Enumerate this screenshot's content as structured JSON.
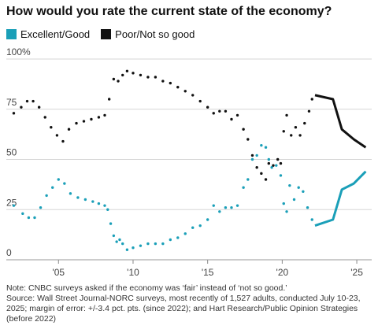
{
  "title": "How would you rate the current state of the economy?",
  "legend": [
    {
      "label": "Excellent/Good",
      "color": "#1a9fb8"
    },
    {
      "label": "Poor/Not so good",
      "color": "#111111"
    }
  ],
  "notes": {
    "note": "Note: CNBC surveys asked if the economy was ‘fair’ instead of ‘not so good.’",
    "source": "Source: Wall Street Journal-NORC surveys, most recently of 1,527 adults, conducted July 10-23, 2025; margin of error: +/-3.4 pct. pts. (since 2022); and Hart Research/Public Opinion Strategies (before 2022)"
  },
  "chart_data": {
    "type": "line",
    "xlim": [
      2001.5,
      2026
    ],
    "ylim": [
      0,
      100
    ],
    "y_ticks": [
      {
        "value": 0,
        "label": "0"
      },
      {
        "value": 25,
        "label": "25"
      },
      {
        "value": 50,
        "label": "50"
      },
      {
        "value": 75,
        "label": "75"
      },
      {
        "value": 100,
        "label": "100%"
      }
    ],
    "x_ticks": [
      {
        "value": 2005,
        "label": "'05"
      },
      {
        "value": 2010,
        "label": "'10"
      },
      {
        "value": 2015,
        "label": "'15"
      },
      {
        "value": 2020,
        "label": "'20"
      },
      {
        "value": 2025,
        "label": "'25"
      }
    ],
    "grid": true,
    "series": [
      {
        "name": "Excellent/Good",
        "color": "#1a9fb8",
        "dotted": [
          [
            2002.0,
            27
          ],
          [
            2002.6,
            23
          ],
          [
            2003.0,
            21
          ],
          [
            2003.4,
            21
          ],
          [
            2003.8,
            26
          ],
          [
            2004.2,
            32
          ],
          [
            2004.6,
            36
          ],
          [
            2005.0,
            40
          ],
          [
            2005.4,
            38
          ],
          [
            2005.8,
            33
          ],
          [
            2006.3,
            31
          ],
          [
            2006.8,
            30
          ],
          [
            2007.3,
            29
          ],
          [
            2007.7,
            28
          ],
          [
            2008.1,
            27
          ],
          [
            2008.3,
            25
          ],
          [
            2008.5,
            18
          ],
          [
            2008.7,
            12
          ],
          [
            2008.9,
            9
          ],
          [
            2009.1,
            10
          ],
          [
            2009.3,
            8
          ],
          [
            2009.6,
            5
          ],
          [
            2010.0,
            6
          ],
          [
            2010.5,
            7
          ],
          [
            2011.0,
            8
          ],
          [
            2011.5,
            8
          ],
          [
            2012.0,
            8
          ],
          [
            2012.5,
            10
          ],
          [
            2013.0,
            11
          ],
          [
            2013.5,
            13
          ],
          [
            2014.0,
            16
          ],
          [
            2014.5,
            17
          ],
          [
            2015.0,
            20
          ],
          [
            2015.4,
            27
          ],
          [
            2015.8,
            24
          ],
          [
            2016.2,
            26
          ],
          [
            2016.6,
            26
          ],
          [
            2017.0,
            27
          ],
          [
            2017.4,
            36
          ],
          [
            2017.7,
            40
          ],
          [
            2018.0,
            50
          ],
          [
            2018.3,
            52
          ],
          [
            2018.6,
            57
          ],
          [
            2018.9,
            56
          ],
          [
            2019.1,
            50
          ],
          [
            2019.3,
            46
          ],
          [
            2019.6,
            47
          ],
          [
            2019.9,
            42
          ],
          [
            2020.1,
            28
          ],
          [
            2020.3,
            24
          ],
          [
            2020.5,
            37
          ],
          [
            2020.8,
            30
          ],
          [
            2021.1,
            36
          ],
          [
            2021.4,
            34
          ],
          [
            2021.7,
            26
          ],
          [
            2022.0,
            20
          ]
        ],
        "solid": [
          [
            2022.2,
            17
          ],
          [
            2023.4,
            20
          ],
          [
            2024.0,
            35
          ],
          [
            2024.8,
            38
          ],
          [
            2025.6,
            44
          ]
        ]
      },
      {
        "name": "Poor/Not so good",
        "color": "#111111",
        "dotted": [
          [
            2002.0,
            73
          ],
          [
            2002.5,
            76
          ],
          [
            2002.9,
            79
          ],
          [
            2003.3,
            79
          ],
          [
            2003.7,
            76
          ],
          [
            2004.1,
            71
          ],
          [
            2004.5,
            66
          ],
          [
            2004.9,
            62
          ],
          [
            2005.3,
            59
          ],
          [
            2005.7,
            65
          ],
          [
            2006.2,
            68
          ],
          [
            2006.7,
            69
          ],
          [
            2007.2,
            70
          ],
          [
            2007.7,
            71
          ],
          [
            2008.1,
            72
          ],
          [
            2008.4,
            80
          ],
          [
            2008.7,
            90
          ],
          [
            2009.0,
            89
          ],
          [
            2009.3,
            92
          ],
          [
            2009.6,
            94
          ],
          [
            2010.0,
            93
          ],
          [
            2010.5,
            92
          ],
          [
            2011.0,
            91
          ],
          [
            2011.5,
            91
          ],
          [
            2012.0,
            89
          ],
          [
            2012.5,
            88
          ],
          [
            2013.0,
            86
          ],
          [
            2013.5,
            84
          ],
          [
            2014.0,
            82
          ],
          [
            2014.5,
            79
          ],
          [
            2015.0,
            76
          ],
          [
            2015.4,
            73
          ],
          [
            2015.8,
            74
          ],
          [
            2016.2,
            74
          ],
          [
            2016.6,
            70
          ],
          [
            2017.0,
            72
          ],
          [
            2017.4,
            65
          ],
          [
            2017.7,
            60
          ],
          [
            2018.0,
            52
          ],
          [
            2018.3,
            46
          ],
          [
            2018.6,
            43
          ],
          [
            2018.9,
            40
          ],
          [
            2019.1,
            48
          ],
          [
            2019.4,
            47
          ],
          [
            2019.7,
            50
          ],
          [
            2019.9,
            48
          ],
          [
            2020.1,
            64
          ],
          [
            2020.3,
            72
          ],
          [
            2020.6,
            62
          ],
          [
            2020.9,
            66
          ],
          [
            2021.2,
            62
          ],
          [
            2021.5,
            68
          ],
          [
            2021.8,
            74
          ],
          [
            2022.0,
            80
          ]
        ],
        "solid": [
          [
            2022.2,
            82
          ],
          [
            2023.4,
            80
          ],
          [
            2024.0,
            65
          ],
          [
            2024.8,
            60
          ],
          [
            2025.6,
            56
          ]
        ]
      }
    ]
  }
}
